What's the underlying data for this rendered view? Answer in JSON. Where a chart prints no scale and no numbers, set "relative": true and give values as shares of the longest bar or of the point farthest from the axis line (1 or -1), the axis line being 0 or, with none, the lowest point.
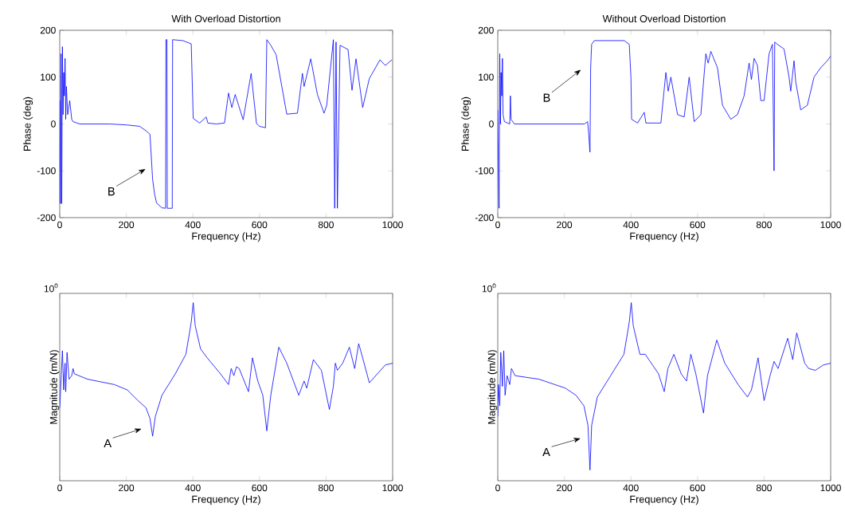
{
  "chart_data": [
    {
      "type": "line",
      "title": "With Overload Distortion",
      "xlabel": "Frequency (Hz)",
      "ylabel": "Phase (deg)",
      "xlim": [
        0,
        1000
      ],
      "ylim": [
        -200,
        200
      ],
      "xticks": [
        0,
        200,
        400,
        600,
        800,
        1000
      ],
      "yticks": [
        -200,
        -100,
        0,
        100,
        200
      ],
      "line_style": "solid",
      "x": [
        0,
        2,
        4,
        6,
        8,
        10,
        12,
        14,
        16,
        18,
        20,
        24,
        30,
        36,
        40,
        60,
        100,
        150,
        200,
        240,
        260,
        271,
        279,
        285,
        291,
        307,
        318,
        319,
        322,
        323,
        338,
        339,
        370,
        395,
        401,
        420,
        440,
        445,
        470,
        495,
        507,
        517,
        527,
        551,
        575,
        591,
        600,
        618,
        622,
        634,
        650,
        682,
        714,
        729,
        734,
        754,
        774,
        794,
        802,
        822,
        826,
        830,
        834,
        842,
        866,
        878,
        890,
        910,
        930,
        962,
        978,
        998
      ],
      "series": [
        {
          "color": "#0000ff",
          "values": [
            50,
            -170,
            150,
            -170,
            165,
            20,
            110,
            60,
            140,
            10,
            80,
            20,
            50,
            10,
            5,
            0,
            0,
            0,
            -2,
            -5,
            -15,
            -22,
            -118,
            -150,
            -169,
            -179,
            -180,
            180,
            180,
            -180,
            -180,
            180,
            178,
            171,
            12,
            2,
            15,
            2,
            0,
            2,
            66,
            35,
            63,
            9,
            108,
            1,
            -5,
            -8,
            180,
            168,
            148,
            21,
            23,
            108,
            80,
            139,
            63,
            23,
            40,
            180,
            -180,
            175,
            -180,
            168,
            159,
            72,
            139,
            35,
            97,
            137,
            125,
            137
          ]
        }
      ],
      "annotations": [
        "B"
      ]
    },
    {
      "type": "line",
      "title": "Without Overload Distortion",
      "xlabel": "Frequency (Hz)",
      "ylabel": "Phase (deg)",
      "xlim": [
        0,
        1000
      ],
      "ylim": [
        -200,
        200
      ],
      "xticks": [
        0,
        200,
        400,
        600,
        800,
        1000
      ],
      "yticks": [
        -200,
        -100,
        0,
        100,
        200
      ],
      "line_style": "solid",
      "x": [
        0,
        2,
        4,
        6,
        8,
        10,
        12,
        14,
        16,
        20,
        36,
        38,
        40,
        50,
        100,
        200,
        260,
        270,
        273,
        277,
        279,
        282,
        290,
        380,
        395,
        400,
        402,
        420,
        440,
        445,
        490,
        505,
        512,
        520,
        540,
        560,
        575,
        590,
        610,
        625,
        632,
        640,
        660,
        675,
        700,
        720,
        740,
        755,
        762,
        770,
        780,
        790,
        800,
        815,
        825,
        830,
        832,
        840,
        860,
        875,
        880,
        890,
        895,
        910,
        930,
        950,
        970,
        990,
        1000
      ],
      "series": [
        {
          "color": "#0000ff",
          "values": [
            30,
            -100,
            -180,
            150,
            0,
            110,
            60,
            140,
            20,
            5,
            0,
            60,
            10,
            0,
            0,
            0,
            0,
            5,
            -20,
            -60,
            120,
            170,
            178,
            178,
            170,
            100,
            10,
            2,
            25,
            2,
            2,
            110,
            70,
            100,
            20,
            15,
            100,
            5,
            20,
            150,
            130,
            155,
            120,
            40,
            10,
            20,
            60,
            130,
            95,
            140,
            125,
            50,
            50,
            150,
            170,
            -100,
            175,
            170,
            160,
            100,
            70,
            135,
            90,
            30,
            40,
            100,
            120,
            135,
            145
          ]
        }
      ],
      "annotations": [
        "B"
      ]
    },
    {
      "type": "line",
      "xlabel": "Frequency (Hz)",
      "ylabel": "Magnitude (m/N)",
      "xlim": [
        0,
        1000
      ],
      "xticks": [
        0,
        200,
        400,
        600,
        800,
        1000
      ],
      "relative": true,
      "line_style": "solid",
      "x": [
        0,
        8,
        12,
        16,
        18,
        22,
        28,
        36,
        40,
        44,
        84,
        164,
        203,
        235,
        259,
        271,
        279,
        287,
        307,
        347,
        379,
        395,
        401,
        407,
        423,
        443,
        483,
        507,
        515,
        523,
        531,
        539,
        567,
        579,
        595,
        610,
        622,
        634,
        658,
        682,
        718,
        734,
        742,
        762,
        786,
        810,
        822,
        828,
        834,
        850,
        870,
        886,
        898,
        910,
        930,
        954,
        978,
        1000
      ],
      "series": [
        {
          "color": "#0000ff",
          "values": [
            0.41,
            0.73,
            0.51,
            0.66,
            0.5,
            0.72,
            0.57,
            0.59,
            0.63,
            0.6,
            0.57,
            0.54,
            0.51,
            0.45,
            0.41,
            0.35,
            0.25,
            0.36,
            0.48,
            0.6,
            0.71,
            0.89,
            1.0,
            0.87,
            0.74,
            0.69,
            0.6,
            0.54,
            0.63,
            0.59,
            0.64,
            0.63,
            0.5,
            0.69,
            0.56,
            0.48,
            0.28,
            0.48,
            0.75,
            0.66,
            0.48,
            0.56,
            0.52,
            0.68,
            0.62,
            0.4,
            0.53,
            0.66,
            0.62,
            0.66,
            0.75,
            0.63,
            0.77,
            0.69,
            0.55,
            0.6,
            0.65,
            0.66
          ]
        }
      ],
      "annotations": [
        "10$^{0}$",
        "A"
      ]
    },
    {
      "type": "line",
      "xlabel": "Frequency (Hz)",
      "ylabel": "Magnitude (m/N)",
      "xlim": [
        0,
        1000
      ],
      "xticks": [
        0,
        200,
        400,
        600,
        800,
        1000
      ],
      "relative": true,
      "line_style": "solid",
      "x": [
        0,
        2,
        6,
        9,
        14,
        18,
        22,
        28,
        36,
        41,
        52,
        124,
        203,
        235,
        259,
        271,
        277,
        282,
        299,
        339,
        379,
        395,
        401,
        407,
        427,
        443,
        483,
        500,
        511,
        529,
        551,
        567,
        580,
        595,
        618,
        630,
        658,
        682,
        722,
        750,
        762,
        782,
        800,
        818,
        830,
        842,
        871,
        886,
        898,
        922,
        934,
        954,
        978,
        1000
      ],
      "series": [
        {
          "color": "#0000ff",
          "values": [
            0.36,
            0.54,
            0.42,
            0.72,
            0.53,
            0.73,
            0.48,
            0.59,
            0.54,
            0.63,
            0.59,
            0.57,
            0.52,
            0.48,
            0.42,
            0.31,
            0.06,
            0.31,
            0.47,
            0.59,
            0.71,
            0.89,
            1.0,
            0.87,
            0.71,
            0.71,
            0.6,
            0.5,
            0.63,
            0.71,
            0.6,
            0.56,
            0.71,
            0.6,
            0.38,
            0.59,
            0.79,
            0.66,
            0.54,
            0.47,
            0.51,
            0.69,
            0.45,
            0.59,
            0.67,
            0.63,
            0.8,
            0.68,
            0.83,
            0.66,
            0.63,
            0.62,
            0.65,
            0.66
          ]
        }
      ],
      "annotations": [
        "10$^{0}$",
        "A"
      ]
    }
  ]
}
